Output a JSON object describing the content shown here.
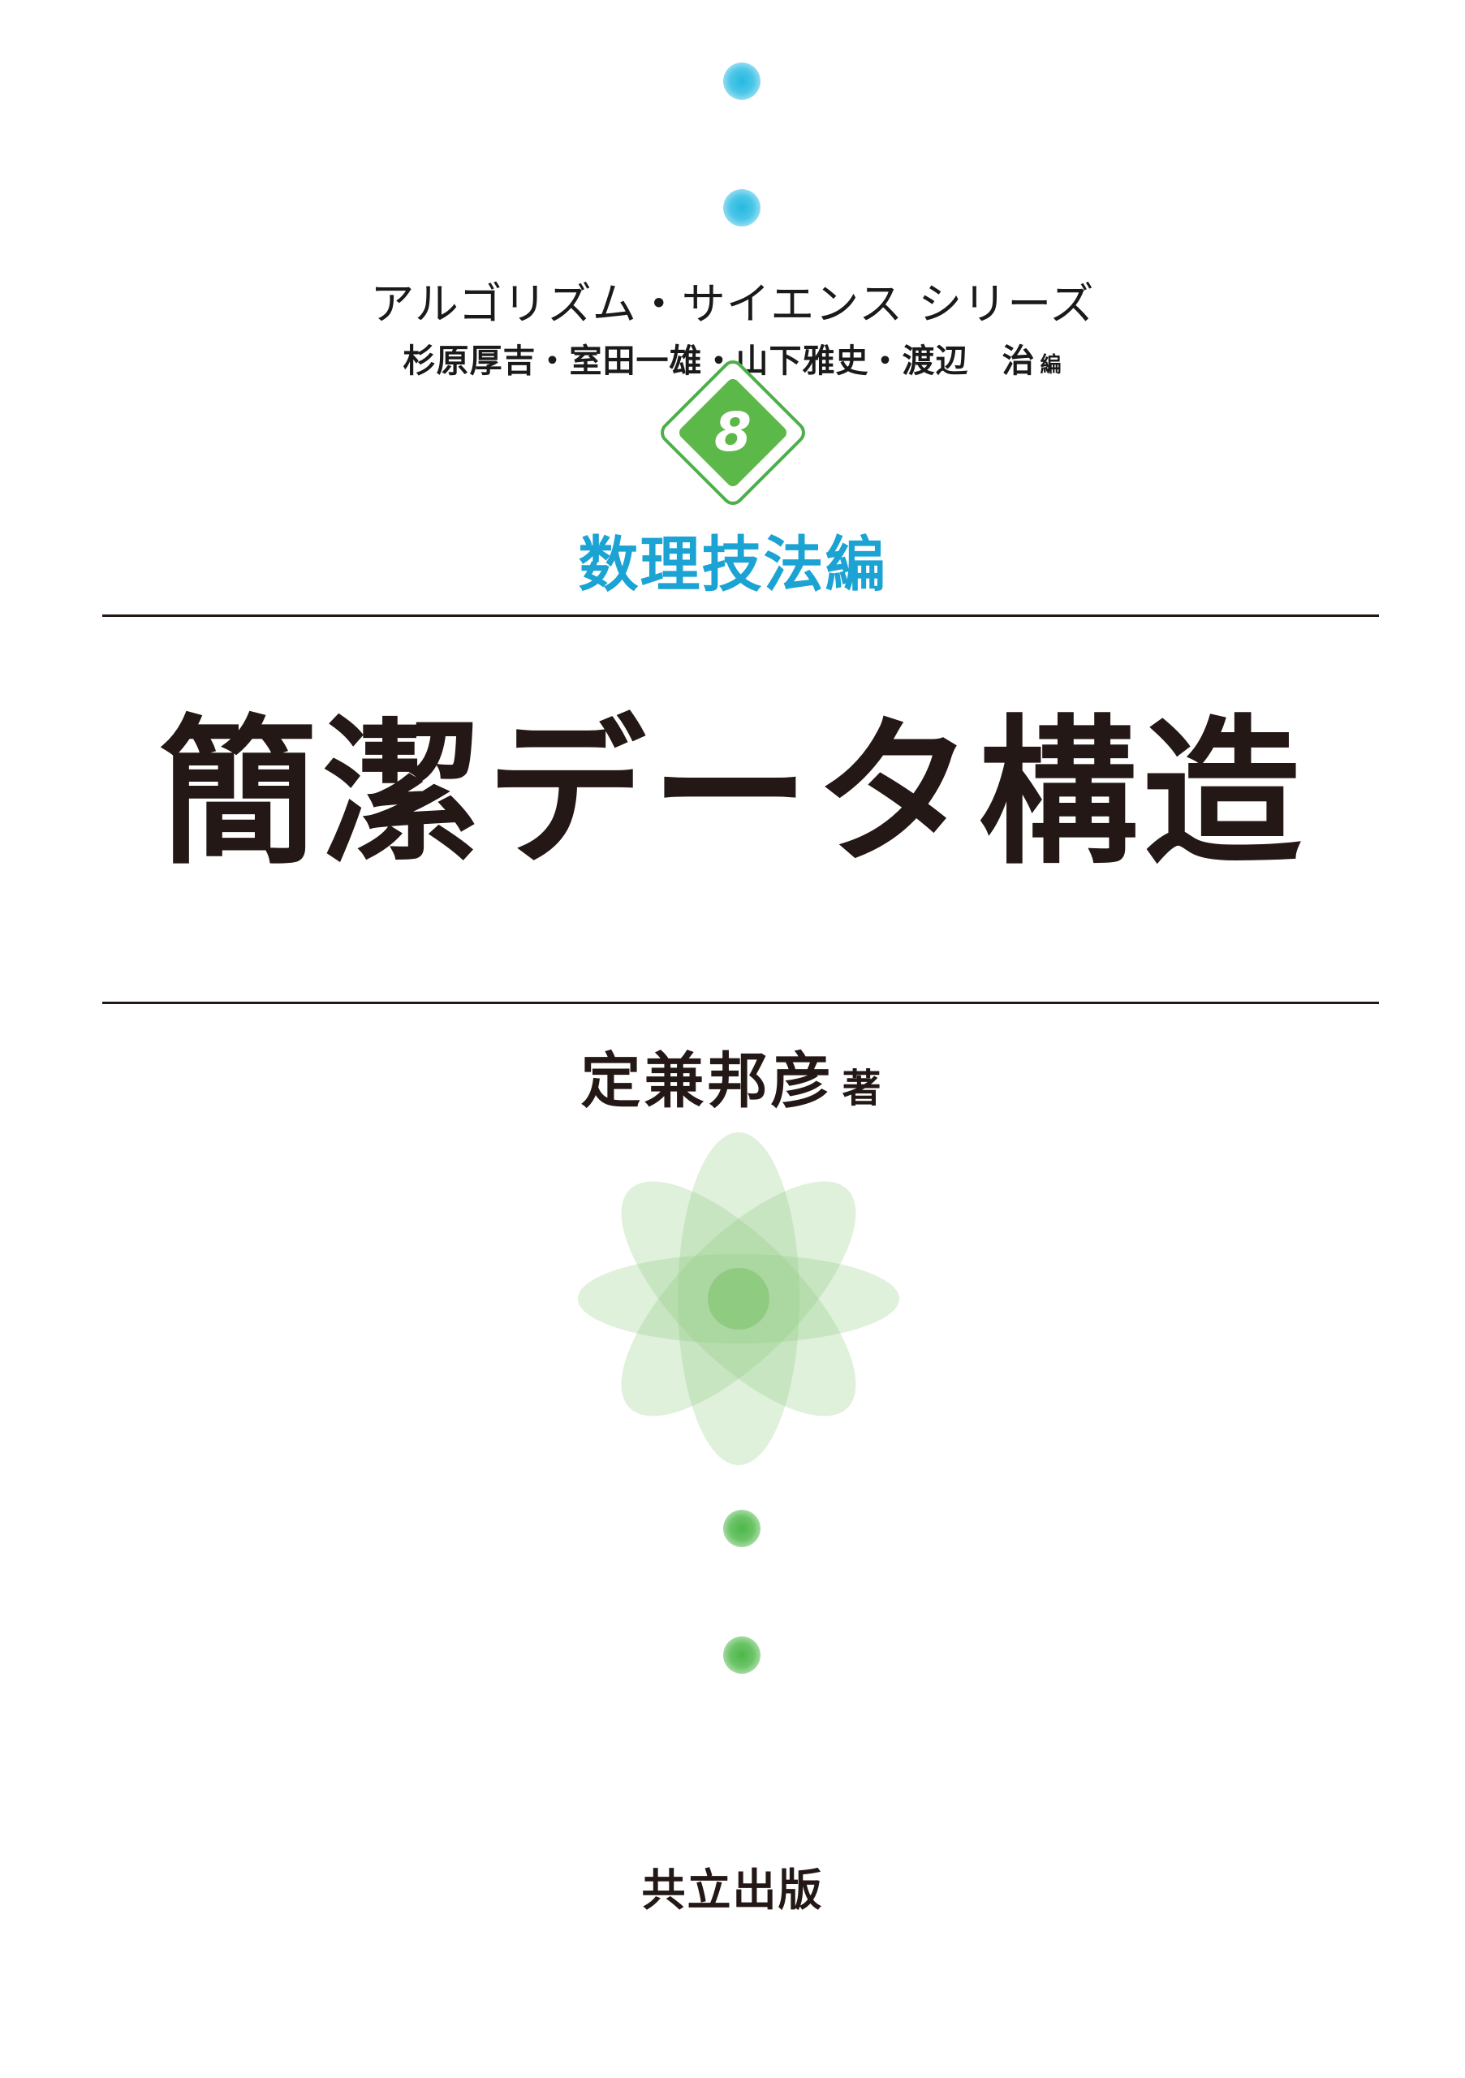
{
  "cover": {
    "series_title": "アルゴリズム・サイエンス シリーズ",
    "editors": "杉原厚吉・室田一雄・山下雅史・渡辺　治",
    "editors_suffix": "編",
    "volume_number": "8",
    "volume_title": "数理技法編",
    "main_title": "簡潔データ構造",
    "author": "定兼邦彦",
    "author_suffix": "著",
    "publisher": "共立出版"
  },
  "colors": {
    "blue_accent": "#1ba3d3",
    "green_accent": "#5cb849",
    "text": "#231815"
  },
  "icons": {
    "top_dots": "blue-dot-icon",
    "badge": "diamond-badge-icon",
    "flower": "atom-flower-icon",
    "bottom_dots": "green-dot-icon"
  }
}
